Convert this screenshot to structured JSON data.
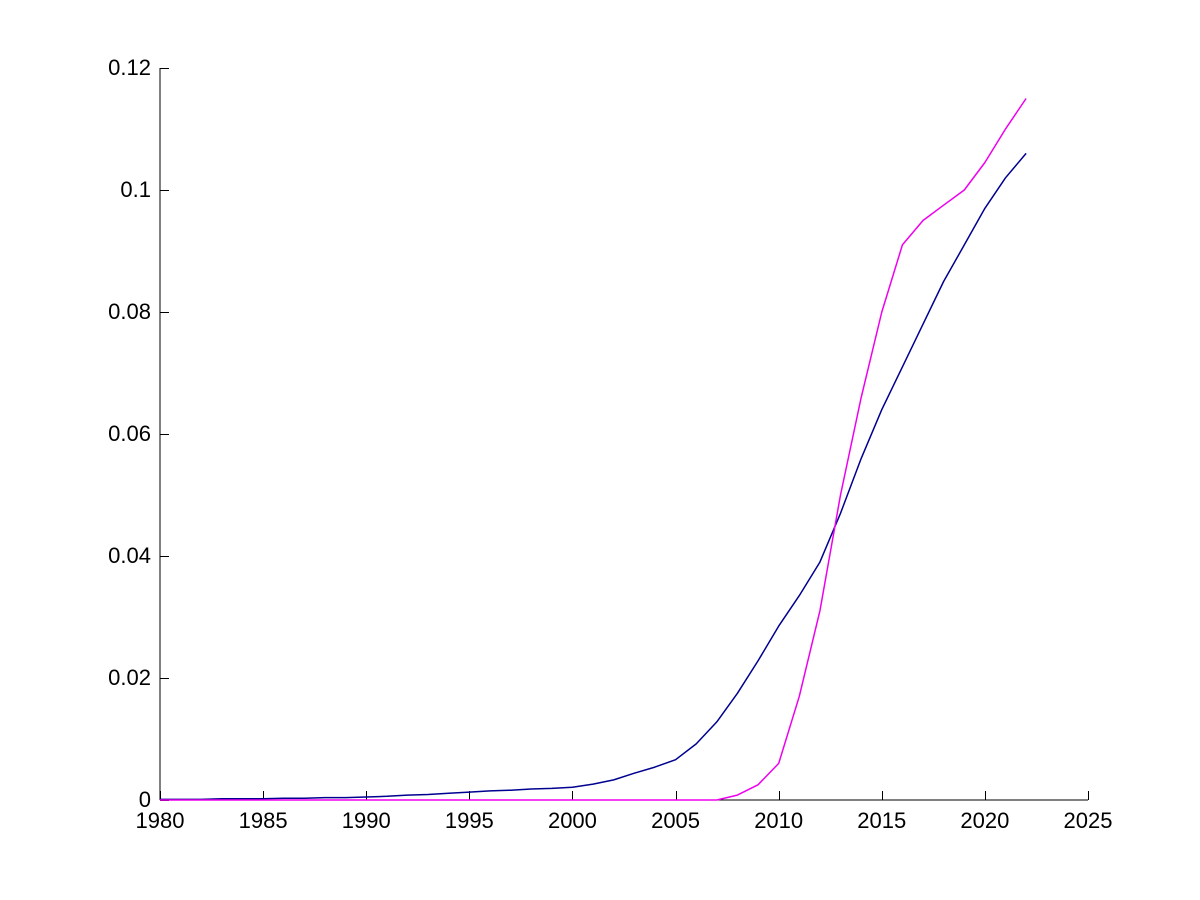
{
  "figure": {
    "background": "#ffffff",
    "title": ""
  },
  "chart_data": {
    "type": "line",
    "title": "",
    "xlabel": "",
    "ylabel": "",
    "grid": false,
    "legend": false,
    "box": false,
    "axis_color": "#000000",
    "xlim": [
      1980,
      2025
    ],
    "ylim": [
      0,
      0.12
    ],
    "xticks": {
      "values": [
        1980,
        1985,
        1990,
        1995,
        2000,
        2005,
        2010,
        2015,
        2020,
        2025
      ],
      "labels": [
        "1980",
        "1985",
        "1990",
        "1995",
        "2000",
        "2005",
        "2010",
        "2015",
        "2020",
        "2025"
      ]
    },
    "yticks": {
      "values": [
        0,
        0.02,
        0.04,
        0.06,
        0.08,
        0.1,
        0.12
      ],
      "labels": [
        "0",
        "0.02",
        "0.04",
        "0.06",
        "0.08",
        "0.1",
        "0.12"
      ]
    },
    "x": [
      1980,
      1981,
      1982,
      1983,
      1984,
      1985,
      1986,
      1987,
      1988,
      1989,
      1990,
      1991,
      1992,
      1993,
      1994,
      1995,
      1996,
      1997,
      1998,
      1999,
      2000,
      2001,
      2002,
      2003,
      2004,
      2005,
      2006,
      2007,
      2008,
      2009,
      2010,
      2011,
      2012,
      2013,
      2014,
      2015,
      2016,
      2017,
      2018,
      2019,
      2020,
      2021,
      2022
    ],
    "series": [
      {
        "id": "dark-blue-curve",
        "color": "#000090",
        "stroke_width": 1.5,
        "values": [
          0.0001,
          0.0001,
          0.0001,
          0.0002,
          0.0002,
          0.0002,
          0.0003,
          0.0003,
          0.0004,
          0.0004,
          0.0005,
          0.0006,
          0.0008,
          0.0009,
          0.0011,
          0.0013,
          0.0015,
          0.0016,
          0.0018,
          0.0019,
          0.0021,
          0.0026,
          0.0033,
          0.0044,
          0.0054,
          0.0066,
          0.0092,
          0.0128,
          0.0175,
          0.0228,
          0.0285,
          0.0335,
          0.039,
          0.047,
          0.056,
          0.064,
          0.071,
          0.078,
          0.085,
          0.091,
          0.097,
          0.102,
          0.106
        ]
      },
      {
        "id": "magenta-curve",
        "color": "#EE00EE",
        "stroke_width": 1.5,
        "values": [
          0,
          0,
          0,
          0,
          0,
          0,
          0,
          0,
          0,
          0,
          0,
          0,
          0,
          0,
          0,
          0,
          0,
          0,
          0,
          0,
          0,
          0,
          0,
          0,
          0,
          0,
          0,
          0,
          0.0008,
          0.0025,
          0.006,
          0.017,
          0.031,
          0.05,
          0.066,
          0.08,
          0.091,
          0.095,
          0.0975,
          0.1,
          0.1045,
          0.11,
          0.115
        ]
      }
    ]
  }
}
